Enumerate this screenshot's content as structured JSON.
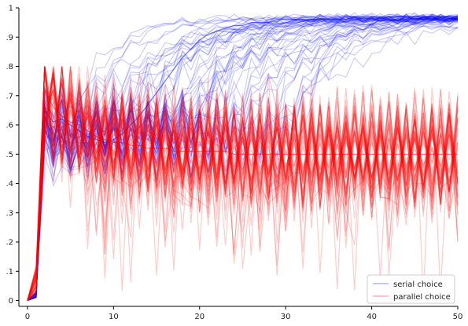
{
  "chart_data": {
    "type": "line",
    "title": "",
    "xlabel": "",
    "ylabel": "",
    "xlim": [
      -1,
      50
    ],
    "ylim": [
      -0.02,
      1.0
    ],
    "x_ticks": [
      0,
      10,
      20,
      30,
      40,
      50
    ],
    "x_tick_labels": [
      "0",
      "10",
      "20",
      "30",
      "40",
      "50"
    ],
    "y_ticks": [
      0,
      0.1,
      0.2,
      0.3,
      0.4,
      0.5,
      0.6,
      0.7,
      0.8,
      0.9,
      1.0
    ],
    "y_tick_labels": [
      "0",
      ".1",
      ".2",
      ".3",
      ".4",
      ".5",
      ".6",
      ".7",
      ".8",
      ".9",
      "1"
    ],
    "grid": false,
    "legend": {
      "placement": "bottom-right",
      "entries": [
        {
          "label": "serial choice",
          "color": "#0000ff"
        },
        {
          "label": "parallel choice",
          "color": "#ff0000"
        }
      ]
    },
    "series": [
      {
        "name": "serial choice",
        "color": "#0000ff",
        "opacity": 0.2,
        "values": [
          0.0,
          0.01,
          0.65,
          0.61,
          0.62,
          0.6,
          0.58,
          0.56,
          0.55,
          0.54,
          0.55,
          0.57,
          0.6,
          0.63,
          0.67,
          0.71,
          0.75,
          0.79,
          0.83,
          0.86,
          0.89,
          0.91,
          0.92,
          0.93,
          0.94,
          0.94,
          0.95,
          0.95,
          0.95,
          0.96,
          0.96,
          0.96,
          0.96,
          0.96,
          0.96,
          0.96,
          0.96,
          0.96,
          0.97,
          0.97,
          0.97,
          0.97,
          0.97,
          0.97,
          0.97,
          0.97,
          0.97,
          0.97,
          0.97,
          0.97,
          0.97
        ]
      },
      {
        "name": "parallel choice",
        "color": "#ff0000",
        "opacity": 0.2,
        "values": [
          0.0,
          0.05,
          0.72,
          0.66,
          0.63,
          0.61,
          0.6,
          0.58,
          0.56,
          0.55,
          0.54,
          0.54,
          0.53,
          0.53,
          0.52,
          0.52,
          0.52,
          0.51,
          0.51,
          0.51,
          0.51,
          0.51,
          0.51,
          0.51,
          0.5,
          0.5,
          0.5,
          0.5,
          0.5,
          0.5,
          0.5,
          0.5,
          0.5,
          0.5,
          0.5,
          0.5,
          0.5,
          0.5,
          0.5,
          0.5,
          0.5,
          0.5,
          0.5,
          0.5,
          0.5,
          0.5,
          0.5,
          0.5,
          0.5,
          0.5,
          0.5
        ]
      }
    ]
  }
}
